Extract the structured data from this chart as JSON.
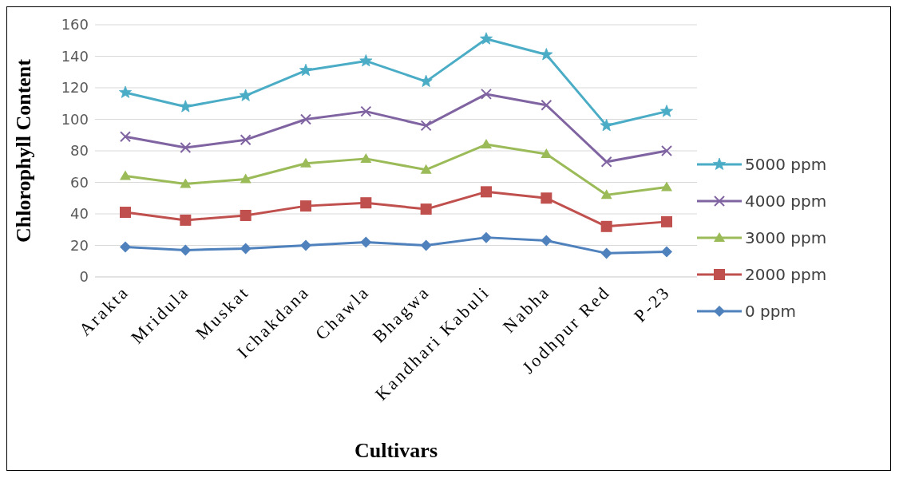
{
  "chart_data": {
    "type": "line",
    "xlabel": "Cultivars",
    "ylabel": "Chlorophyll Content",
    "categories": [
      "Arakta",
      "Mridula",
      "Muskat",
      "Ichakdana",
      "Chawla",
      "Bhagwa",
      "Kandhari Kabuli",
      "Nabha",
      "Jodhpur Red",
      "P-23"
    ],
    "series": [
      {
        "name": "5000 ppm",
        "color": "#4bacc6",
        "marker": "star",
        "values": [
          117,
          108,
          115,
          131,
          137,
          124,
          151,
          141,
          96,
          105
        ]
      },
      {
        "name": "4000 ppm",
        "color": "#8064a2",
        "marker": "cross",
        "values": [
          89,
          82,
          87,
          100,
          105,
          96,
          116,
          109,
          73,
          80
        ]
      },
      {
        "name": "3000 ppm",
        "color": "#9bbb59",
        "marker": "triangle",
        "values": [
          64,
          59,
          62,
          72,
          75,
          68,
          84,
          78,
          52,
          57
        ]
      },
      {
        "name": "2000 ppm",
        "color": "#c0504d",
        "marker": "square",
        "values": [
          41,
          36,
          39,
          45,
          47,
          43,
          54,
          50,
          32,
          35
        ]
      },
      {
        "name": "0 ppm",
        "color": "#4f81bd",
        "marker": "diamond",
        "values": [
          19,
          17,
          18,
          20,
          22,
          20,
          25,
          23,
          15,
          16
        ]
      }
    ],
    "ylim": [
      0,
      160
    ],
    "yticks": [
      0,
      20,
      40,
      60,
      80,
      100,
      120,
      140,
      160
    ],
    "grid": "y",
    "legend": "right"
  }
}
